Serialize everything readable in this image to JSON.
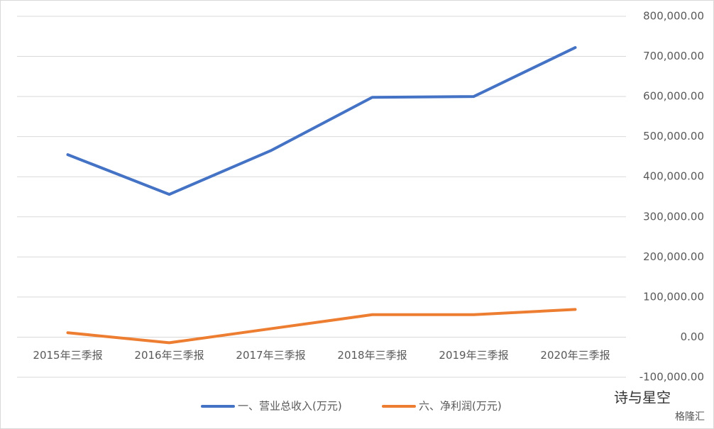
{
  "chart_data": {
    "type": "line",
    "categories": [
      "2015年三季报",
      "2016年三季报",
      "2017年三季报",
      "2018年三季报",
      "2019年三季报",
      "2020年三季报"
    ],
    "series": [
      {
        "name": "一、营业总收入(万元)",
        "color": "#4472c4",
        "values": [
          455000,
          356000,
          465000,
          598000,
          600000,
          722000
        ]
      },
      {
        "name": "六、净利润(万元)",
        "color": "#ed7d31",
        "values": [
          11000,
          -14000,
          21000,
          56000,
          56000,
          69000
        ]
      }
    ],
    "ylim": [
      -100000,
      800000
    ],
    "yticks": [
      {
        "value": -100000,
        "label": "-100,000.00"
      },
      {
        "value": 0,
        "label": "0.00"
      },
      {
        "value": 100000,
        "label": "100,000.00"
      },
      {
        "value": 200000,
        "label": "200,000.00"
      },
      {
        "value": 300000,
        "label": "300,000.00"
      },
      {
        "value": 400000,
        "label": "400,000.00"
      },
      {
        "value": 500000,
        "label": "500,000.00"
      },
      {
        "value": 600000,
        "label": "600,000.00"
      },
      {
        "value": 700000,
        "label": "700,000.00"
      },
      {
        "value": 800000,
        "label": "800,000.00"
      }
    ],
    "y_axis_side": "right",
    "grid": true,
    "legend": "bottom",
    "watermark": "诗与星空",
    "source": "格隆汇"
  }
}
